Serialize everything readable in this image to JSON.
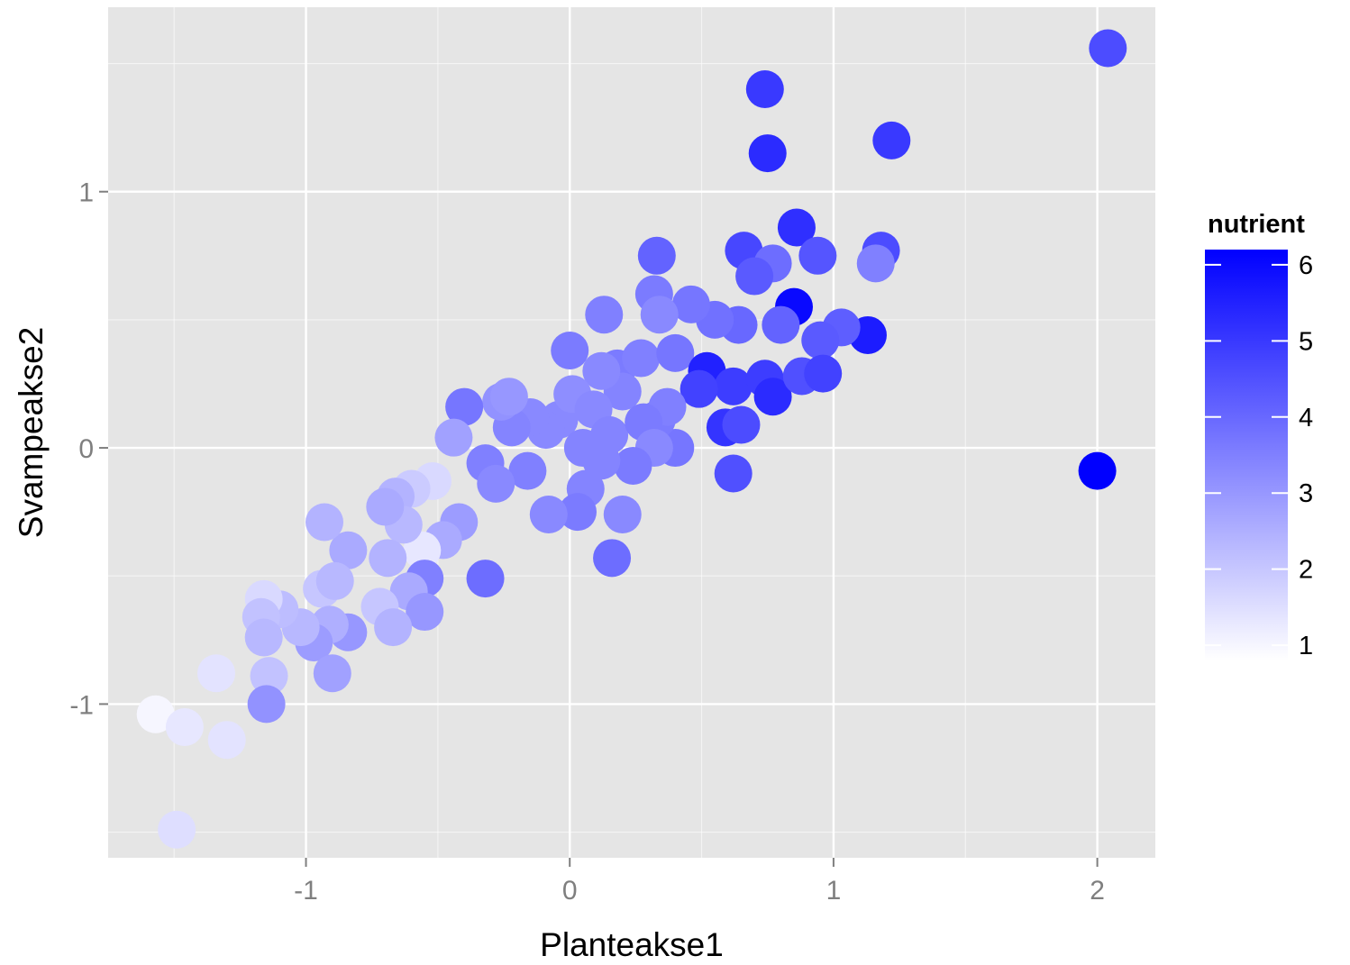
{
  "chart_data": {
    "type": "scatter",
    "xlabel": "Planteakse1",
    "ylabel": "Svampeakse2",
    "xlim": [
      -1.75,
      2.22
    ],
    "ylim": [
      -1.6,
      1.72
    ],
    "xticks": [
      -1,
      0,
      1,
      2
    ],
    "yticks": [
      -1,
      0,
      1
    ],
    "grid": true,
    "background": "#e5e5e5",
    "grid_color": "#ffffff",
    "legend": {
      "title": "nutrient",
      "placement": "right",
      "ticks": [
        1,
        2,
        3,
        4,
        5,
        6
      ],
      "range": [
        0.8,
        6.2
      ],
      "low_color": "#ffffff",
      "high_color": "#0000ff"
    },
    "points": [
      [
        2.04,
        1.56,
        4.6
      ],
      [
        0.74,
        1.4,
        5.0
      ],
      [
        0.75,
        1.15,
        5.3
      ],
      [
        1.22,
        1.2,
        5.0
      ],
      [
        0.86,
        0.86,
        5.2
      ],
      [
        1.18,
        0.77,
        4.6
      ],
      [
        1.16,
        0.72,
        3.5
      ],
      [
        0.66,
        0.77,
        4.7
      ],
      [
        0.33,
        0.75,
        4.1
      ],
      [
        0.94,
        0.75,
        4.4
      ],
      [
        0.77,
        0.72,
        3.9
      ],
      [
        0.7,
        0.67,
        4.3
      ],
      [
        0.85,
        0.55,
        6.0
      ],
      [
        1.13,
        0.44,
        5.6
      ],
      [
        1.03,
        0.47,
        4.2
      ],
      [
        0.95,
        0.42,
        4.3
      ],
      [
        0.8,
        0.48,
        4.1
      ],
      [
        0.64,
        0.48,
        4.0
      ],
      [
        0.55,
        0.5,
        3.8
      ],
      [
        0.46,
        0.56,
        3.7
      ],
      [
        0.32,
        0.6,
        3.6
      ],
      [
        0.34,
        0.52,
        3.3
      ],
      [
        0.13,
        0.52,
        3.5
      ],
      [
        0.0,
        0.38,
        3.6
      ],
      [
        0.18,
        0.31,
        3.6
      ],
      [
        0.27,
        0.35,
        3.5
      ],
      [
        0.4,
        0.37,
        3.7
      ],
      [
        0.52,
        0.3,
        5.5
      ],
      [
        0.62,
        0.24,
        4.9
      ],
      [
        0.74,
        0.27,
        4.9
      ],
      [
        0.77,
        0.2,
        5.3
      ],
      [
        0.88,
        0.28,
        4.5
      ],
      [
        0.96,
        0.29,
        4.8
      ],
      [
        0.49,
        0.23,
        4.8
      ],
      [
        0.59,
        0.08,
        5.1
      ],
      [
        0.65,
        0.09,
        4.6
      ],
      [
        0.62,
        -0.1,
        4.5
      ],
      [
        0.4,
        0.0,
        3.7
      ],
      [
        0.33,
        0.11,
        3.6
      ],
      [
        0.37,
        0.16,
        3.5
      ],
      [
        0.2,
        0.22,
        3.4
      ],
      [
        0.12,
        0.3,
        3.3
      ],
      [
        -0.04,
        0.11,
        3.3
      ],
      [
        0.01,
        0.21,
        3.2
      ],
      [
        0.09,
        0.15,
        3.3
      ],
      [
        0.15,
        0.05,
        3.4
      ],
      [
        0.28,
        0.1,
        3.6
      ],
      [
        0.32,
        0.0,
        3.3
      ],
      [
        0.24,
        -0.07,
        3.6
      ],
      [
        0.12,
        -0.05,
        3.4
      ],
      [
        0.05,
        0.0,
        3.4
      ],
      [
        -0.09,
        0.07,
        3.3
      ],
      [
        -0.15,
        0.12,
        3.3
      ],
      [
        -0.22,
        0.08,
        3.4
      ],
      [
        -0.26,
        0.18,
        3.1
      ],
      [
        -0.23,
        0.2,
        3.0
      ],
      [
        -0.4,
        0.16,
        3.7
      ],
      [
        -0.44,
        0.04,
        2.8
      ],
      [
        -0.32,
        -0.06,
        3.5
      ],
      [
        -0.16,
        -0.09,
        3.5
      ],
      [
        -0.28,
        -0.14,
        3.3
      ],
      [
        0.06,
        -0.16,
        3.4
      ],
      [
        0.03,
        -0.25,
        3.6
      ],
      [
        0.2,
        -0.26,
        3.3
      ],
      [
        -0.08,
        -0.26,
        3.3
      ],
      [
        0.16,
        -0.43,
        3.9
      ],
      [
        -0.32,
        -0.51,
        3.9
      ],
      [
        -0.52,
        -0.13,
        1.6
      ],
      [
        -0.6,
        -0.16,
        1.9
      ],
      [
        -0.66,
        -0.19,
        2.4
      ],
      [
        -0.42,
        -0.29,
        2.9
      ],
      [
        -0.48,
        -0.36,
        2.6
      ],
      [
        -0.56,
        -0.4,
        1.3
      ],
      [
        -0.63,
        -0.3,
        2.3
      ],
      [
        -0.7,
        -0.23,
        2.6
      ],
      [
        -0.69,
        -0.43,
        2.4
      ],
      [
        -0.84,
        -0.4,
        2.6
      ],
      [
        -0.93,
        -0.29,
        2.4
      ],
      [
        -0.94,
        -0.55,
        2.0
      ],
      [
        -0.89,
        -0.52,
        2.3
      ],
      [
        -0.55,
        -0.51,
        3.5
      ],
      [
        -0.61,
        -0.56,
        2.6
      ],
      [
        -0.55,
        -0.64,
        3.0
      ],
      [
        -0.72,
        -0.62,
        2.0
      ],
      [
        -0.67,
        -0.7,
        2.4
      ],
      [
        -0.84,
        -0.72,
        3.0
      ],
      [
        -0.91,
        -0.69,
        2.5
      ],
      [
        -0.97,
        -0.76,
        2.9
      ],
      [
        -1.02,
        -0.7,
        2.3
      ],
      [
        -1.1,
        -0.63,
        2.2
      ],
      [
        -1.16,
        -0.59,
        1.6
      ],
      [
        -1.17,
        -0.66,
        2.1
      ],
      [
        -1.16,
        -0.74,
        2.3
      ],
      [
        -1.14,
        -0.89,
        2.1
      ],
      [
        -1.15,
        -1.0,
        3.1
      ],
      [
        -0.9,
        -0.88,
        2.8
      ],
      [
        -1.34,
        -0.88,
        1.4
      ],
      [
        -1.57,
        -1.04,
        1.0
      ],
      [
        -1.46,
        -1.09,
        1.3
      ],
      [
        -1.3,
        -1.14,
        1.4
      ],
      [
        -1.49,
        -1.49,
        1.5
      ],
      [
        2.0,
        -0.09,
        6.2
      ]
    ]
  }
}
